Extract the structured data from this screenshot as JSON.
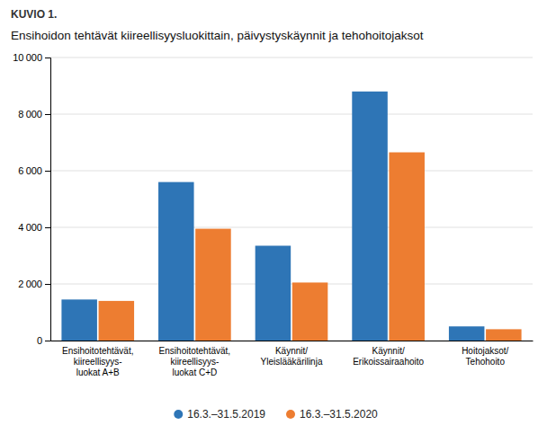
{
  "chart_data": {
    "type": "bar",
    "title": "Ensihoidon tehtävät kiireellisyysluokittain, päivystyskäynnit ja tehohoitojaksot",
    "annotations": [
      "KUVIO 1."
    ],
    "categories": [
      "Ensihoitotehtävät,\nkiireellisyys-\nluokat A+B",
      "Ensihoitotehtävät,\nkiireellisyys-\nluokat C+D",
      "Käynnit/\nYleislääkärilinja",
      "Käynnit/\nErikoissairaahoito",
      "Hoitojaksot/\nTehohoito"
    ],
    "series": [
      {
        "name": "16.3.–31.5.2019",
        "color": "#2E75B6",
        "values": [
          1450,
          5600,
          3350,
          8800,
          500
        ]
      },
      {
        "name": "16.3.–31.5.2020",
        "color": "#ED7D31",
        "values": [
          1400,
          3950,
          2050,
          6650,
          400
        ]
      }
    ],
    "ylim": [
      0,
      10000
    ],
    "yticks": [
      0,
      {
        "value": 2000,
        "label": "2 000"
      },
      {
        "value": 4000,
        "label": "4 000"
      },
      {
        "value": 6000,
        "label": "6 000"
      },
      {
        "value": 8000,
        "label": "8 000"
      },
      {
        "value": 10000,
        "label": "10 000"
      }
    ],
    "grid": true,
    "legend": "bottom"
  }
}
